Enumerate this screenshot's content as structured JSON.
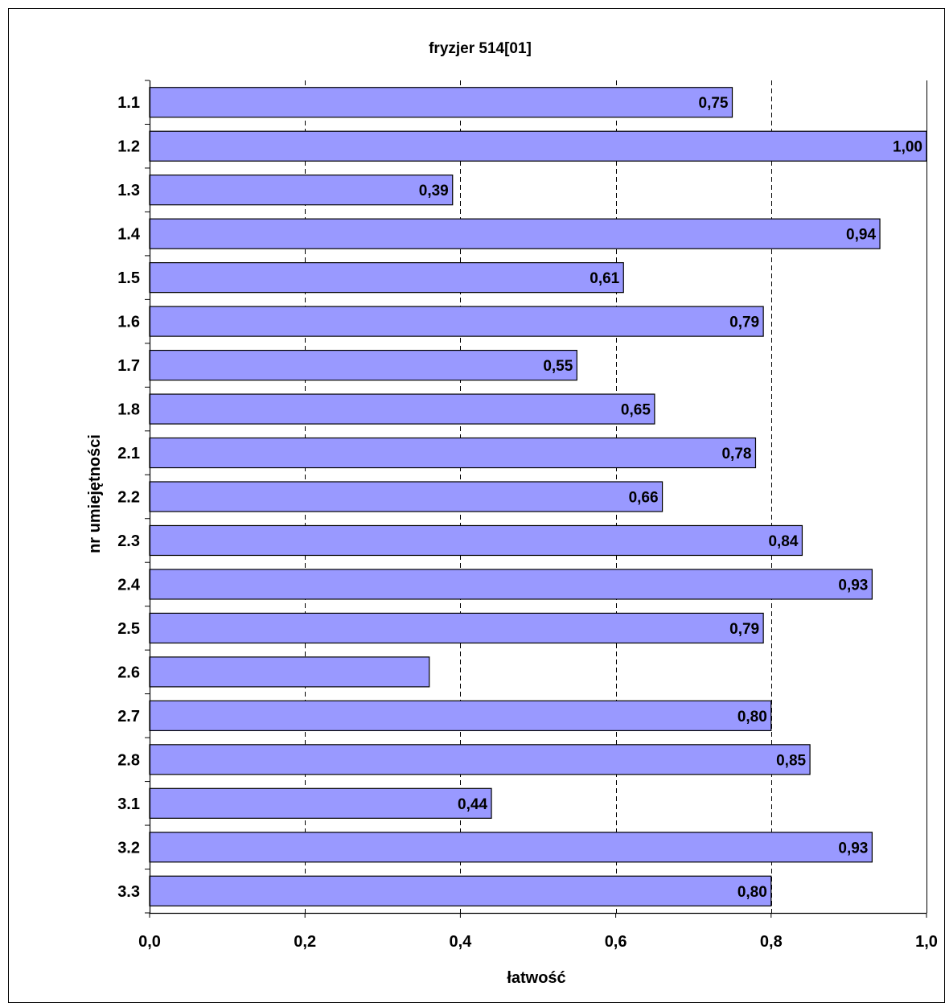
{
  "chart_data": {
    "type": "bar",
    "orientation": "horizontal",
    "title": "fryzjer 514[01]",
    "xlabel": "łatwość",
    "ylabel": "nr umiejętności",
    "categories": [
      "1.1",
      "1.2",
      "1.3",
      "1.4",
      "1.5",
      "1.6",
      "1.7",
      "1.8",
      "2.1",
      "2.2",
      "2.3",
      "2.4",
      "2.5",
      "2.6",
      "2.7",
      "2.8",
      "3.1",
      "3.2",
      "3.3"
    ],
    "values": [
      0.75,
      1.0,
      0.39,
      0.94,
      0.61,
      0.79,
      0.55,
      0.65,
      0.78,
      0.66,
      0.84,
      0.93,
      0.79,
      0.36,
      0.8,
      0.85,
      0.44,
      0.93,
      0.8
    ],
    "data_labels": [
      "0,75",
      "1,00",
      "0,39",
      "0,94",
      "0,61",
      "0,79",
      "0,55",
      "0,65",
      "0,78",
      "0,66",
      "0,84",
      "0,93",
      "0,79",
      "",
      "0,80",
      "0,85",
      "0,44",
      "0,93",
      "0,80"
    ],
    "xlim": [
      0,
      1
    ],
    "x_ticks": [
      0,
      0.2,
      0.4,
      0.6,
      0.8,
      1.0
    ],
    "x_tick_labels": [
      "0,0",
      "0,2",
      "0,4",
      "0,6",
      "0,8",
      "1,0"
    ],
    "grid": "vertical dashed",
    "legend": "none",
    "colors": {
      "bar_fill": "#9999ff",
      "bar_stroke": "#000000",
      "grid": "#000000",
      "frame": "#000000"
    }
  }
}
